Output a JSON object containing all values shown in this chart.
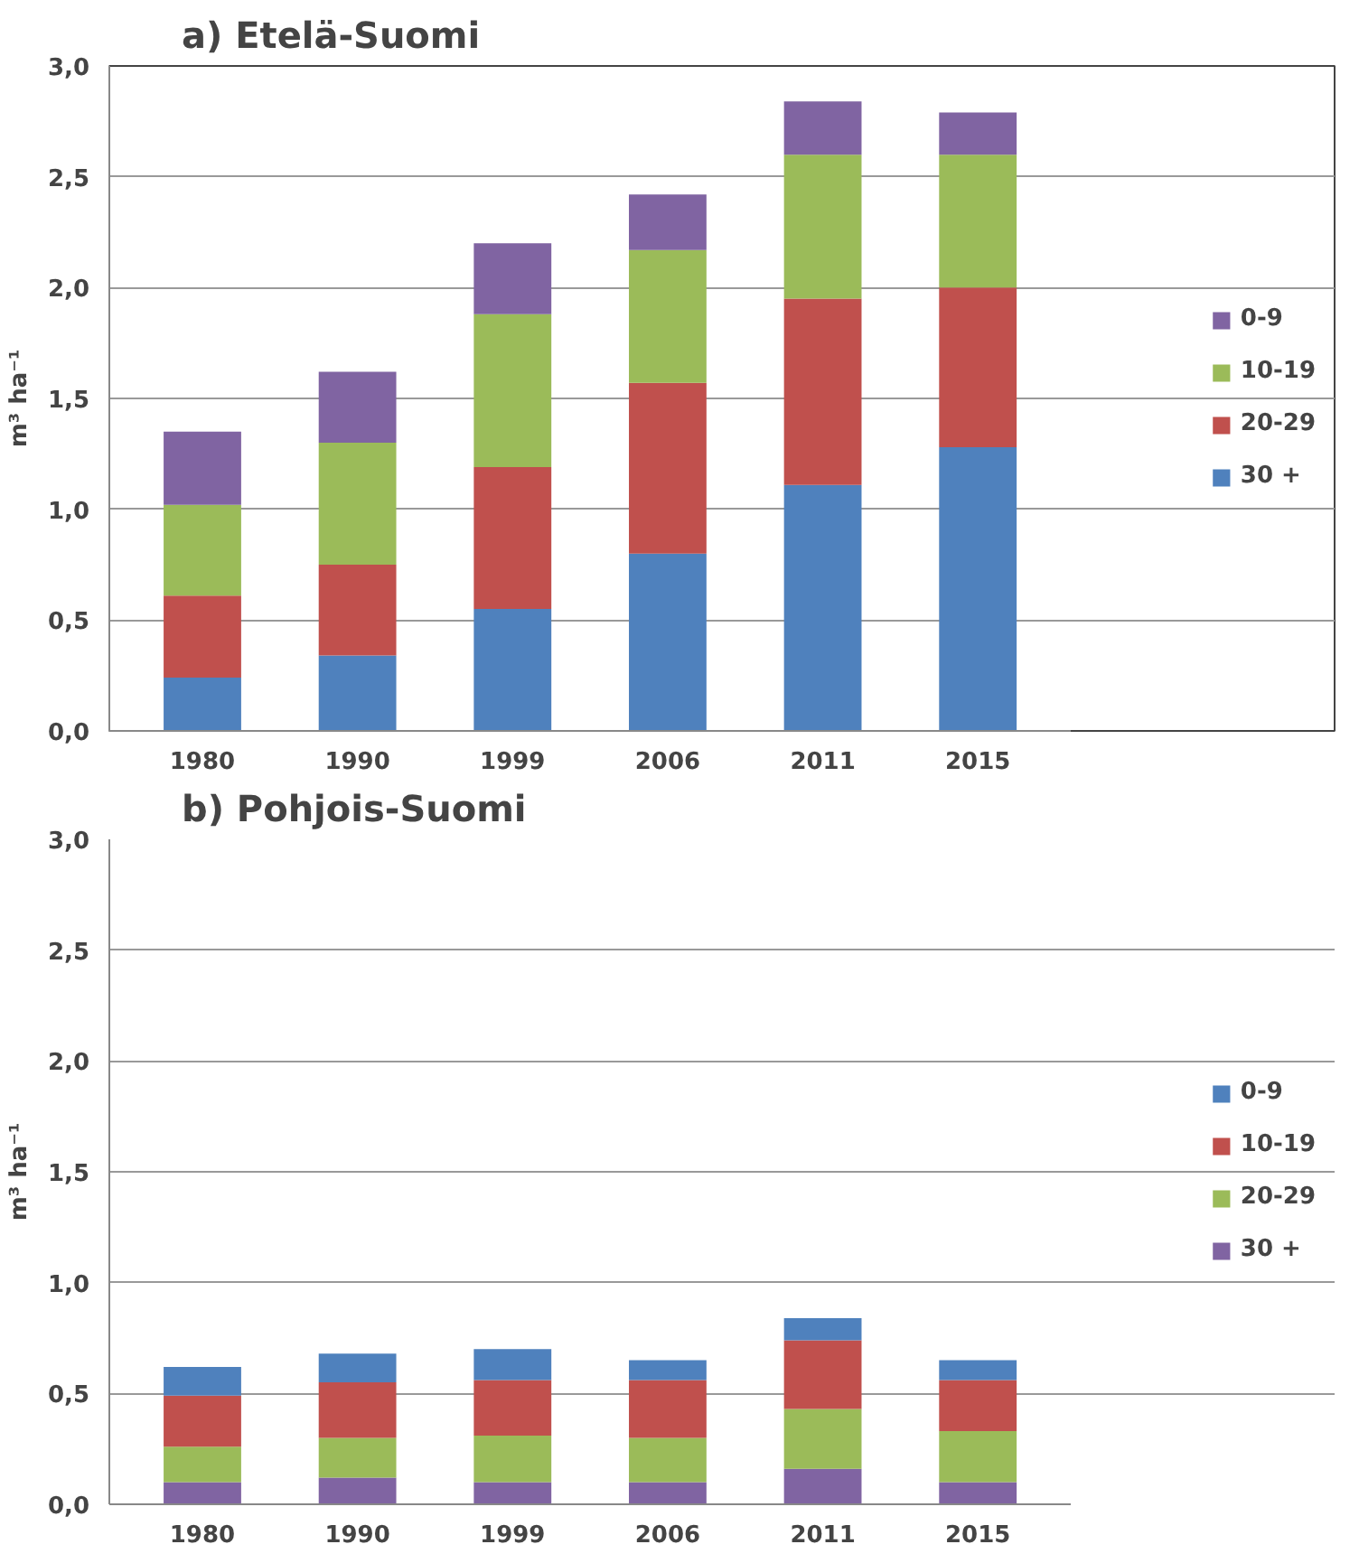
{
  "chart_data": [
    {
      "type": "bar",
      "title": "a) Etelä-Suomi",
      "ylabel": "m³ ha⁻¹",
      "stacked": true,
      "grid": "y",
      "legend": "right",
      "categories": [
        "1980",
        "1990",
        "1999",
        "2006",
        "2011",
        "2015"
      ],
      "ylim": [
        0,
        3
      ],
      "yticks": [
        {
          "value": 0,
          "label": "0,0"
        },
        {
          "value": 0.5,
          "label": "0,5"
        },
        {
          "value": 1,
          "label": "1,0"
        },
        {
          "value": 1.5,
          "label": "1,5"
        },
        {
          "value": 2,
          "label": "2,0"
        },
        {
          "value": 2.5,
          "label": "2,5"
        },
        {
          "value": 3,
          "label": "3,0"
        }
      ],
      "series": [
        {
          "name": "30 +",
          "color": "#4f81bd",
          "values": [
            0.24,
            0.34,
            0.55,
            0.8,
            1.11,
            1.28
          ]
        },
        {
          "name": "20-29",
          "color": "#c0504d",
          "values": [
            0.37,
            0.41,
            0.64,
            0.77,
            0.84,
            0.72
          ]
        },
        {
          "name": "10-19",
          "color": "#9bbb59",
          "values": [
            0.41,
            0.55,
            0.69,
            0.6,
            0.65,
            0.6
          ]
        },
        {
          "name": "0-9",
          "color": "#8064a2",
          "values": [
            0.33,
            0.32,
            0.32,
            0.25,
            0.24,
            0.19
          ]
        }
      ]
    },
    {
      "type": "bar",
      "title": "b) Pohjois-Suomi",
      "ylabel": "m³ ha⁻¹",
      "stacked": true,
      "grid": "y",
      "legend": "right",
      "categories": [
        "1980",
        "1990",
        "1999",
        "2006",
        "2011",
        "2015"
      ],
      "ylim": [
        0,
        3
      ],
      "yticks": [
        {
          "value": 0,
          "label": "0,0"
        },
        {
          "value": 0.5,
          "label": "0,5"
        },
        {
          "value": 1,
          "label": "1,0"
        },
        {
          "value": 1.5,
          "label": "1,5"
        },
        {
          "value": 2,
          "label": "2,0"
        },
        {
          "value": 2.5,
          "label": "2,5"
        },
        {
          "value": 3,
          "label": "3,0"
        }
      ],
      "series": [
        {
          "name": "30 +",
          "color": "#8064a2",
          "values": [
            0.1,
            0.12,
            0.1,
            0.1,
            0.16,
            0.1
          ]
        },
        {
          "name": "20-29",
          "color": "#9bbb59",
          "values": [
            0.16,
            0.18,
            0.21,
            0.2,
            0.27,
            0.23
          ]
        },
        {
          "name": "10-19",
          "color": "#c0504d",
          "values": [
            0.23,
            0.25,
            0.25,
            0.26,
            0.31,
            0.23
          ]
        },
        {
          "name": "0-9",
          "color": "#4f81bd",
          "values": [
            0.13,
            0.13,
            0.14,
            0.09,
            0.1,
            0.09
          ]
        }
      ]
    }
  ]
}
